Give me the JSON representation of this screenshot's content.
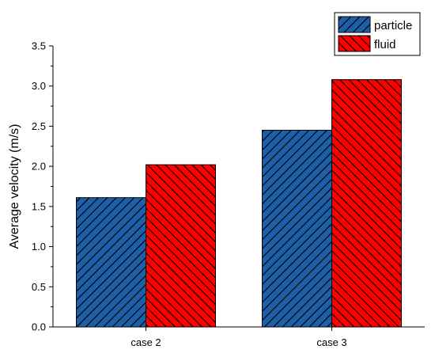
{
  "chart_data": {
    "type": "bar",
    "title": "",
    "xlabel": "",
    "ylabel": "Average velocity (m/s)",
    "categories": [
      "case 2",
      "case 3"
    ],
    "ylim": [
      0,
      3.5
    ],
    "yticks": [
      "0.0",
      "0.5",
      "1.0",
      "1.5",
      "2.0",
      "2.5",
      "3.0",
      "3.5"
    ],
    "grid": false,
    "legend_position": "top-right",
    "series": [
      {
        "name": "particle",
        "values": [
          1.61,
          2.45
        ],
        "color": "#1f5fa8",
        "hatch": "forward-diagonal"
      },
      {
        "name": "fluid",
        "values": [
          2.02,
          3.08
        ],
        "color": "#ff0000",
        "hatch": "back-diagonal"
      }
    ]
  }
}
